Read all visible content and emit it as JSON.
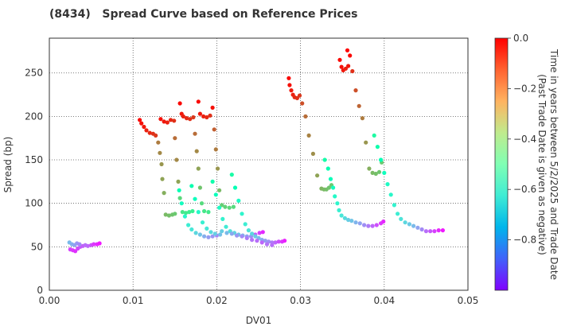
{
  "chart_data": {
    "type": "scatter",
    "title": "(8434)   Spread Curve based on Reference Prices",
    "xlabel": "DV01",
    "ylabel": "Spread (bp)",
    "xlim": [
      0.0,
      0.05
    ],
    "ylim": [
      0,
      290
    ],
    "x_ticks": [
      0.0,
      0.01,
      0.02,
      0.03,
      0.04,
      0.05
    ],
    "x_tick_labels": [
      "0.00",
      "0.01",
      "0.02",
      "0.03",
      "0.04",
      "0.05"
    ],
    "y_ticks": [
      0,
      50,
      100,
      150,
      200,
      250
    ],
    "y_tick_labels": [
      "0",
      "50",
      "100",
      "150",
      "200",
      "250"
    ],
    "grid": true,
    "colorbar": {
      "label_line1": "Time in years between 5/2/2025 and Trade Date",
      "label_line2": "(Past Trade Date is given as negative)",
      "range": [
        -1.0,
        0.0
      ],
      "ticks": [
        0.0,
        -0.2,
        -0.4,
        -0.6,
        -0.8
      ],
      "tick_labels": [
        "0.0",
        "−0.2",
        "−0.4",
        "−0.6",
        "−0.8"
      ],
      "colormap": "rainbow"
    },
    "colors": {
      "grid": "#555555",
      "axis": "#333333"
    },
    "points": [
      {
        "x": 0.0024,
        "y": 55,
        "t": -0.74
      },
      {
        "x": 0.0027,
        "y": 53,
        "t": -0.76
      },
      {
        "x": 0.003,
        "y": 52,
        "t": -0.78
      },
      {
        "x": 0.0025,
        "y": 47,
        "t": -0.92
      },
      {
        "x": 0.0028,
        "y": 46,
        "t": -0.93
      },
      {
        "x": 0.0031,
        "y": 45,
        "t": -0.94
      },
      {
        "x": 0.0034,
        "y": 48,
        "t": -0.91
      },
      {
        "x": 0.0037,
        "y": 50,
        "t": -0.89
      },
      {
        "x": 0.004,
        "y": 51,
        "t": -0.88
      },
      {
        "x": 0.0043,
        "y": 52,
        "t": -0.86
      },
      {
        "x": 0.0046,
        "y": 51,
        "t": -0.87
      },
      {
        "x": 0.005,
        "y": 52,
        "t": -0.9
      },
      {
        "x": 0.0053,
        "y": 53,
        "t": -0.93
      },
      {
        "x": 0.0057,
        "y": 53,
        "t": -0.95
      },
      {
        "x": 0.006,
        "y": 54,
        "t": -0.97
      },
      {
        "x": 0.0033,
        "y": 54,
        "t": -0.8
      },
      {
        "x": 0.0036,
        "y": 53,
        "t": -0.82
      },
      {
        "x": 0.0108,
        "y": 196,
        "t": -0.01
      },
      {
        "x": 0.011,
        "y": 192,
        "t": -0.02
      },
      {
        "x": 0.0113,
        "y": 188,
        "t": -0.03
      },
      {
        "x": 0.0116,
        "y": 184,
        "t": -0.04
      },
      {
        "x": 0.012,
        "y": 181,
        "t": -0.05
      },
      {
        "x": 0.0124,
        "y": 180,
        "t": -0.06
      },
      {
        "x": 0.0127,
        "y": 178,
        "t": -0.07
      },
      {
        "x": 0.013,
        "y": 170,
        "t": -0.16
      },
      {
        "x": 0.0132,
        "y": 158,
        "t": -0.18
      },
      {
        "x": 0.0134,
        "y": 145,
        "t": -0.2
      },
      {
        "x": 0.0135,
        "y": 128,
        "t": -0.22
      },
      {
        "x": 0.0137,
        "y": 112,
        "t": -0.24
      },
      {
        "x": 0.0139,
        "y": 87,
        "t": -0.26
      },
      {
        "x": 0.0143,
        "y": 86,
        "t": -0.27
      },
      {
        "x": 0.0147,
        "y": 87,
        "t": -0.28
      },
      {
        "x": 0.015,
        "y": 88,
        "t": -0.29
      },
      {
        "x": 0.0133,
        "y": 197,
        "t": -0.02
      },
      {
        "x": 0.0137,
        "y": 194,
        "t": -0.03
      },
      {
        "x": 0.0141,
        "y": 193,
        "t": -0.04
      },
      {
        "x": 0.0145,
        "y": 196,
        "t": -0.05
      },
      {
        "x": 0.0149,
        "y": 195,
        "t": -0.06
      },
      {
        "x": 0.015,
        "y": 175,
        "t": -0.14
      },
      {
        "x": 0.0152,
        "y": 150,
        "t": -0.18
      },
      {
        "x": 0.0154,
        "y": 125,
        "t": -0.22
      },
      {
        "x": 0.0156,
        "y": 106,
        "t": -0.32
      },
      {
        "x": 0.0159,
        "y": 90,
        "t": -0.36
      },
      {
        "x": 0.0163,
        "y": 89,
        "t": -0.37
      },
      {
        "x": 0.0167,
        "y": 90,
        "t": -0.38
      },
      {
        "x": 0.0171,
        "y": 91,
        "t": -0.39
      },
      {
        "x": 0.0156,
        "y": 215,
        "t": -0.01
      },
      {
        "x": 0.0158,
        "y": 203,
        "t": -0.03
      },
      {
        "x": 0.016,
        "y": 200,
        "t": -0.04
      },
      {
        "x": 0.0164,
        "y": 198,
        "t": -0.05
      },
      {
        "x": 0.0168,
        "y": 197,
        "t": -0.06
      },
      {
        "x": 0.0172,
        "y": 199,
        "t": -0.07
      },
      {
        "x": 0.0174,
        "y": 180,
        "t": -0.14
      },
      {
        "x": 0.0176,
        "y": 160,
        "t": -0.18
      },
      {
        "x": 0.0178,
        "y": 140,
        "t": -0.22
      },
      {
        "x": 0.018,
        "y": 118,
        "t": -0.28
      },
      {
        "x": 0.0182,
        "y": 100,
        "t": -0.33
      },
      {
        "x": 0.0185,
        "y": 91,
        "t": -0.36
      },
      {
        "x": 0.019,
        "y": 90,
        "t": -0.37
      },
      {
        "x": 0.0178,
        "y": 217,
        "t": -0.01
      },
      {
        "x": 0.018,
        "y": 203,
        "t": -0.03
      },
      {
        "x": 0.0184,
        "y": 200,
        "t": -0.04
      },
      {
        "x": 0.0188,
        "y": 199,
        "t": -0.05
      },
      {
        "x": 0.0192,
        "y": 201,
        "t": -0.06
      },
      {
        "x": 0.0195,
        "y": 210,
        "t": -0.02
      },
      {
        "x": 0.0197,
        "y": 185,
        "t": -0.12
      },
      {
        "x": 0.0199,
        "y": 162,
        "t": -0.16
      },
      {
        "x": 0.0201,
        "y": 140,
        "t": -0.2
      },
      {
        "x": 0.0203,
        "y": 115,
        "t": -0.26
      },
      {
        "x": 0.0206,
        "y": 98,
        "t": -0.3
      },
      {
        "x": 0.021,
        "y": 96,
        "t": -0.31
      },
      {
        "x": 0.0215,
        "y": 95,
        "t": -0.32
      },
      {
        "x": 0.022,
        "y": 96,
        "t": -0.33
      },
      {
        "x": 0.0155,
        "y": 115,
        "t": -0.5
      },
      {
        "x": 0.0158,
        "y": 100,
        "t": -0.54
      },
      {
        "x": 0.0162,
        "y": 85,
        "t": -0.58
      },
      {
        "x": 0.0166,
        "y": 75,
        "t": -0.62
      },
      {
        "x": 0.017,
        "y": 70,
        "t": -0.64
      },
      {
        "x": 0.0175,
        "y": 66,
        "t": -0.68
      },
      {
        "x": 0.018,
        "y": 64,
        "t": -0.72
      },
      {
        "x": 0.0185,
        "y": 62,
        "t": -0.76
      },
      {
        "x": 0.019,
        "y": 61,
        "t": -0.79
      },
      {
        "x": 0.0195,
        "y": 62,
        "t": -0.8
      },
      {
        "x": 0.02,
        "y": 63,
        "t": -0.82
      },
      {
        "x": 0.017,
        "y": 120,
        "t": -0.48
      },
      {
        "x": 0.0174,
        "y": 105,
        "t": -0.53
      },
      {
        "x": 0.0178,
        "y": 90,
        "t": -0.57
      },
      {
        "x": 0.0183,
        "y": 78,
        "t": -0.61
      },
      {
        "x": 0.0188,
        "y": 71,
        "t": -0.64
      },
      {
        "x": 0.0193,
        "y": 67,
        "t": -0.67
      },
      {
        "x": 0.0198,
        "y": 65,
        "t": -0.7
      },
      {
        "x": 0.0204,
        "y": 64,
        "t": -0.73
      },
      {
        "x": 0.0195,
        "y": 125,
        "t": -0.47
      },
      {
        "x": 0.0199,
        "y": 110,
        "t": -0.52
      },
      {
        "x": 0.0203,
        "y": 95,
        "t": -0.56
      },
      {
        "x": 0.0207,
        "y": 82,
        "t": -0.6
      },
      {
        "x": 0.0211,
        "y": 73,
        "t": -0.63
      },
      {
        "x": 0.0216,
        "y": 68,
        "t": -0.66
      },
      {
        "x": 0.0221,
        "y": 66,
        "t": -0.69
      },
      {
        "x": 0.0226,
        "y": 64,
        "t": -0.72
      },
      {
        "x": 0.0231,
        "y": 63,
        "t": -0.75
      },
      {
        "x": 0.0236,
        "y": 62,
        "t": -0.78
      },
      {
        "x": 0.0241,
        "y": 62,
        "t": -0.81
      },
      {
        "x": 0.0246,
        "y": 64,
        "t": -0.88
      },
      {
        "x": 0.0251,
        "y": 66,
        "t": -0.92
      },
      {
        "x": 0.0255,
        "y": 67,
        "t": -0.95
      },
      {
        "x": 0.0218,
        "y": 133,
        "t": -0.45
      },
      {
        "x": 0.0222,
        "y": 118,
        "t": -0.5
      },
      {
        "x": 0.0226,
        "y": 103,
        "t": -0.55
      },
      {
        "x": 0.023,
        "y": 88,
        "t": -0.59
      },
      {
        "x": 0.0234,
        "y": 76,
        "t": -0.62
      },
      {
        "x": 0.0238,
        "y": 69,
        "t": -0.65
      },
      {
        "x": 0.0242,
        "y": 65,
        "t": -0.68
      },
      {
        "x": 0.0246,
        "y": 62,
        "t": -0.71
      },
      {
        "x": 0.025,
        "y": 60,
        "t": -0.74
      },
      {
        "x": 0.0254,
        "y": 58,
        "t": -0.77
      },
      {
        "x": 0.0258,
        "y": 57,
        "t": -0.79
      },
      {
        "x": 0.0262,
        "y": 56,
        "t": -0.81
      },
      {
        "x": 0.0266,
        "y": 55,
        "t": -0.84
      },
      {
        "x": 0.027,
        "y": 55,
        "t": -0.87
      },
      {
        "x": 0.0274,
        "y": 56,
        "t": -0.9
      },
      {
        "x": 0.0278,
        "y": 56,
        "t": -0.93
      },
      {
        "x": 0.0281,
        "y": 57,
        "t": -0.96
      },
      {
        "x": 0.0206,
        "y": 68,
        "t": -0.7
      },
      {
        "x": 0.0212,
        "y": 66,
        "t": -0.74
      },
      {
        "x": 0.0218,
        "y": 65,
        "t": -0.77
      },
      {
        "x": 0.0224,
        "y": 63,
        "t": -0.8
      },
      {
        "x": 0.023,
        "y": 62,
        "t": -0.82
      },
      {
        "x": 0.0236,
        "y": 60,
        "t": -0.84
      },
      {
        "x": 0.0242,
        "y": 58,
        "t": -0.85
      },
      {
        "x": 0.0248,
        "y": 57,
        "t": -0.86
      },
      {
        "x": 0.0254,
        "y": 55,
        "t": -0.87
      },
      {
        "x": 0.026,
        "y": 53,
        "t": -0.85
      },
      {
        "x": 0.0266,
        "y": 52,
        "t": -0.86
      },
      {
        "x": 0.0286,
        "y": 244,
        "t": -0.01
      },
      {
        "x": 0.0287,
        "y": 236,
        "t": -0.02
      },
      {
        "x": 0.0289,
        "y": 230,
        "t": -0.03
      },
      {
        "x": 0.0291,
        "y": 225,
        "t": -0.04
      },
      {
        "x": 0.0293,
        "y": 222,
        "t": -0.05
      },
      {
        "x": 0.0296,
        "y": 221,
        "t": -0.06
      },
      {
        "x": 0.0299,
        "y": 224,
        "t": -0.07
      },
      {
        "x": 0.0302,
        "y": 215,
        "t": -0.1
      },
      {
        "x": 0.0306,
        "y": 200,
        "t": -0.14
      },
      {
        "x": 0.031,
        "y": 178,
        "t": -0.17
      },
      {
        "x": 0.0315,
        "y": 157,
        "t": -0.19
      },
      {
        "x": 0.032,
        "y": 132,
        "t": -0.22
      },
      {
        "x": 0.0325,
        "y": 117,
        "t": -0.25
      },
      {
        "x": 0.0328,
        "y": 116,
        "t": -0.26
      },
      {
        "x": 0.0331,
        "y": 116,
        "t": -0.27
      },
      {
        "x": 0.0334,
        "y": 118,
        "t": -0.28
      },
      {
        "x": 0.0337,
        "y": 121,
        "t": -0.29
      },
      {
        "x": 0.0329,
        "y": 150,
        "t": -0.46
      },
      {
        "x": 0.0333,
        "y": 140,
        "t": -0.49
      },
      {
        "x": 0.0336,
        "y": 128,
        "t": -0.52
      },
      {
        "x": 0.0339,
        "y": 118,
        "t": -0.54
      },
      {
        "x": 0.0341,
        "y": 108,
        "t": -0.57
      },
      {
        "x": 0.0344,
        "y": 100,
        "t": -0.59
      },
      {
        "x": 0.0346,
        "y": 92,
        "t": -0.61
      },
      {
        "x": 0.0349,
        "y": 86,
        "t": -0.64
      },
      {
        "x": 0.0353,
        "y": 83,
        "t": -0.67
      },
      {
        "x": 0.0357,
        "y": 81,
        "t": -0.7
      },
      {
        "x": 0.0361,
        "y": 80,
        "t": -0.72
      },
      {
        "x": 0.0366,
        "y": 78,
        "t": -0.75
      },
      {
        "x": 0.0371,
        "y": 77,
        "t": -0.78
      },
      {
        "x": 0.0376,
        "y": 75,
        "t": -0.81
      },
      {
        "x": 0.0381,
        "y": 74,
        "t": -0.84
      },
      {
        "x": 0.0386,
        "y": 74,
        "t": -0.87
      },
      {
        "x": 0.0391,
        "y": 75,
        "t": -0.9
      },
      {
        "x": 0.0396,
        "y": 77,
        "t": -0.93
      },
      {
        "x": 0.0399,
        "y": 79,
        "t": -0.95
      },
      {
        "x": 0.0347,
        "y": 265,
        "t": -0.01
      },
      {
        "x": 0.0349,
        "y": 257,
        "t": -0.02
      },
      {
        "x": 0.0351,
        "y": 253,
        "t": -0.03
      },
      {
        "x": 0.0354,
        "y": 255,
        "t": -0.04
      },
      {
        "x": 0.0357,
        "y": 258,
        "t": -0.03
      },
      {
        "x": 0.0356,
        "y": 276,
        "t": 0.0
      },
      {
        "x": 0.0359,
        "y": 270,
        "t": -0.01
      },
      {
        "x": 0.0362,
        "y": 252,
        "t": -0.06
      },
      {
        "x": 0.0366,
        "y": 230,
        "t": -0.1
      },
      {
        "x": 0.037,
        "y": 212,
        "t": -0.13
      },
      {
        "x": 0.0374,
        "y": 198,
        "t": -0.16
      },
      {
        "x": 0.0378,
        "y": 170,
        "t": -0.2
      },
      {
        "x": 0.0382,
        "y": 140,
        "t": -0.24
      },
      {
        "x": 0.0386,
        "y": 135,
        "t": -0.26
      },
      {
        "x": 0.039,
        "y": 134,
        "t": -0.27
      },
      {
        "x": 0.0394,
        "y": 136,
        "t": -0.28
      },
      {
        "x": 0.0397,
        "y": 147,
        "t": -0.29
      },
      {
        "x": 0.0388,
        "y": 178,
        "t": -0.44
      },
      {
        "x": 0.0392,
        "y": 165,
        "t": -0.47
      },
      {
        "x": 0.0396,
        "y": 150,
        "t": -0.5
      },
      {
        "x": 0.04,
        "y": 135,
        "t": -0.53
      },
      {
        "x": 0.0404,
        "y": 122,
        "t": -0.56
      },
      {
        "x": 0.0408,
        "y": 110,
        "t": -0.58
      },
      {
        "x": 0.0412,
        "y": 98,
        "t": -0.6
      },
      {
        "x": 0.0416,
        "y": 88,
        "t": -0.62
      },
      {
        "x": 0.042,
        "y": 82,
        "t": -0.65
      },
      {
        "x": 0.0425,
        "y": 78,
        "t": -0.68
      },
      {
        "x": 0.043,
        "y": 76,
        "t": -0.71
      },
      {
        "x": 0.0435,
        "y": 74,
        "t": -0.74
      },
      {
        "x": 0.044,
        "y": 72,
        "t": -0.78
      },
      {
        "x": 0.0445,
        "y": 70,
        "t": -0.82
      },
      {
        "x": 0.045,
        "y": 68,
        "t": -0.86
      },
      {
        "x": 0.0455,
        "y": 68,
        "t": -0.89
      },
      {
        "x": 0.046,
        "y": 68,
        "t": -0.92
      },
      {
        "x": 0.0465,
        "y": 69,
        "t": -0.95
      },
      {
        "x": 0.047,
        "y": 69,
        "t": -0.97
      }
    ]
  }
}
